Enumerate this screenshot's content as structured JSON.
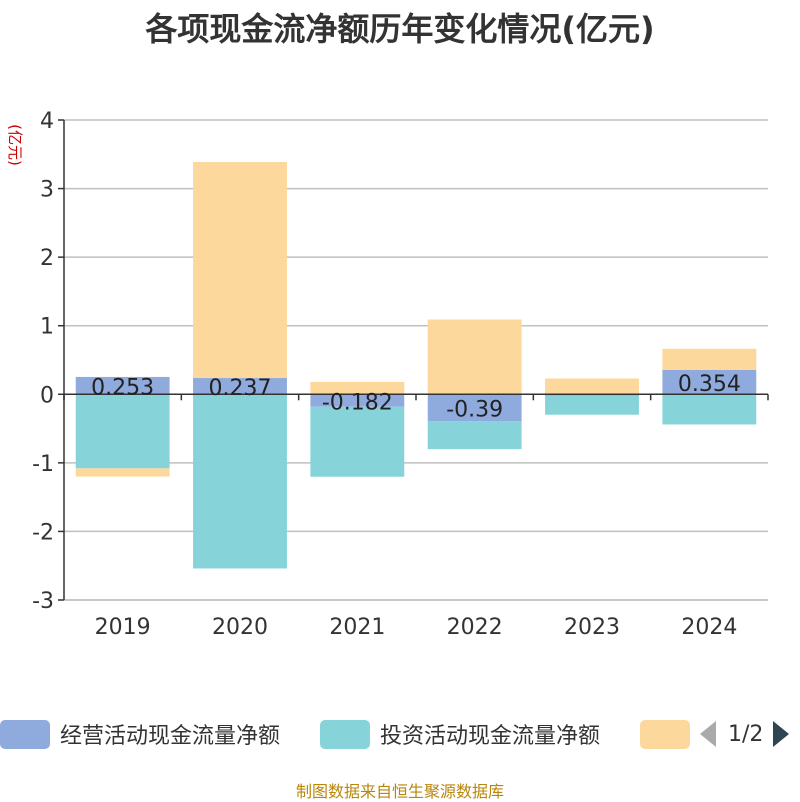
{
  "chart_data": {
    "type": "bar",
    "stacked": true,
    "title": "各项现金流净额历年变化情况(亿元)",
    "ylabel": "(亿元)",
    "categories": [
      "2019",
      "2020",
      "2021",
      "2022",
      "2023",
      "2024"
    ],
    "ylim": [
      -3,
      4
    ],
    "yticks": [
      4,
      3,
      2,
      1,
      0,
      -1,
      -2,
      -3
    ],
    "grid": true,
    "series": [
      {
        "name": "经营活动现金流量净额",
        "color": "#8faadc",
        "values": [
          0.253,
          0.237,
          -0.182,
          -0.39,
          -0.018,
          0.354
        ],
        "labels": [
          "0.253",
          "0.237",
          "-0.182",
          "-0.39",
          "",
          "0.354"
        ]
      },
      {
        "name": "投资活动现金流量净额",
        "color": "#86d4d9",
        "values": [
          -1.08,
          -2.54,
          -1.02,
          -0.41,
          -0.28,
          -0.44
        ]
      },
      {
        "name": "",
        "color": "#fdd89c",
        "values": [
          -0.12,
          3.15,
          0.18,
          1.09,
          0.23,
          0.31
        ]
      }
    ],
    "legend": {
      "placement": "bottom",
      "page": "1/2"
    },
    "source": "制图数据来自恒生聚源数据库"
  }
}
